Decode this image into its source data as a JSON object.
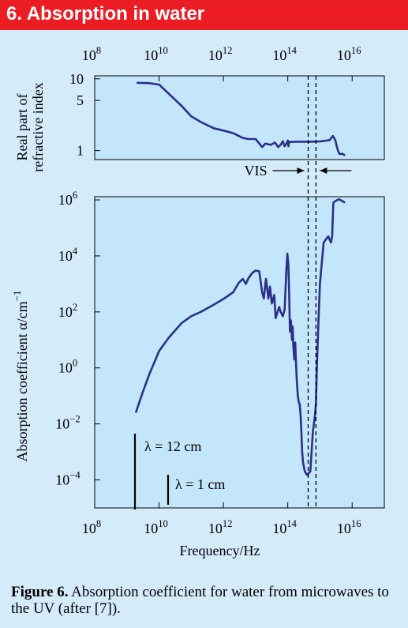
{
  "header": {
    "title": "6. Absorption in water"
  },
  "caption": {
    "label": "Figure 6.",
    "text": " Absorption coefficient for water from microwaves to the UV (after [7])."
  },
  "colors": {
    "banner": "#ec1c24",
    "panel_fill": "#c4e6fa",
    "background": "#d4ebf9",
    "curve": "#2b2f8a"
  },
  "chart_data": [
    {
      "type": "line",
      "ylabel": "Real part of refractive index",
      "x_scale": "log",
      "y_scale": "log",
      "xlim": [
        100000000.0,
        1e+17
      ],
      "ylim": [
        0.75,
        11
      ],
      "x_ticks": [
        {
          "value": 100000000.0,
          "base": "10",
          "exp": "8"
        },
        {
          "value": 10000000000.0,
          "base": "10",
          "exp": "10"
        },
        {
          "value": 1000000000000.0,
          "base": "10",
          "exp": "12"
        },
        {
          "value": 100000000000000.0,
          "base": "10",
          "exp": "14"
        },
        {
          "value": 1e+16,
          "base": "10",
          "exp": "16"
        }
      ],
      "y_ticks": [
        {
          "value": 10,
          "label": "10"
        },
        {
          "value": 5,
          "label": "5"
        },
        {
          "value": 1,
          "label": "1"
        }
      ],
      "annotation": "VIS",
      "vis_band_hz": [
        430000000000000.0,
        750000000000000.0
      ],
      "series": [
        {
          "x": [
            2000000000.0,
            5000000000.0,
            10000000000.0,
            20000000000.0,
            50000000000.0,
            100000000000.0,
            200000000000.0,
            500000000000.0,
            1000000000000.0,
            2000000000000.0,
            4000000000000.0,
            6000000000000.0,
            10000000000000.0,
            16000000000000.0,
            20000000000000.0,
            30000000000000.0,
            40000000000000.0,
            50000000000000.0,
            60000000000000.0,
            70000000000000.0,
            80000000000000.0,
            90000000000000.0,
            100000000000000.0,
            105000000000000.0,
            110000000000000.0,
            200000000000000.0,
            500000000000000.0,
            1000000000000000.0,
            2000000000000000.0,
            2500000000000000.0,
            3000000000000000.0,
            3500000000000000.0,
            4000000000000000.0,
            5000000000000000.0,
            6000000000000000.0
          ],
          "y": [
            8.8,
            8.7,
            8.3,
            6.2,
            4.2,
            3.0,
            2.5,
            2.05,
            1.9,
            1.75,
            1.5,
            1.45,
            1.45,
            1.12,
            1.25,
            1.2,
            1.3,
            1.12,
            1.2,
            1.35,
            1.15,
            1.25,
            1.38,
            1.15,
            1.32,
            1.33,
            1.33,
            1.34,
            1.4,
            1.6,
            1.4,
            1.05,
            0.9,
            0.9,
            0.86
          ]
        }
      ]
    },
    {
      "type": "line",
      "ylabel": "Absorption coefficient α/cm",
      "ylabel_exp": "−1",
      "xlabel": "Frequency/Hz",
      "x_scale": "log",
      "y_scale": "log",
      "xlim": [
        100000000.0,
        1e+17
      ],
      "ylim": [
        1e-05,
        1300000.0
      ],
      "x_ticks": [
        {
          "value": 100000000.0,
          "base": "10",
          "exp": "8"
        },
        {
          "value": 10000000000.0,
          "base": "10",
          "exp": "10"
        },
        {
          "value": 1000000000000.0,
          "base": "10",
          "exp": "12"
        },
        {
          "value": 100000000000000.0,
          "base": "10",
          "exp": "14"
        },
        {
          "value": 1e+16,
          "base": "10",
          "exp": "16"
        }
      ],
      "y_ticks": [
        {
          "value": 1000000.0,
          "base": "10",
          "exp": "6"
        },
        {
          "value": 10000.0,
          "base": "10",
          "exp": "4"
        },
        {
          "value": 100.0,
          "base": "10",
          "exp": "2"
        },
        {
          "value": 1,
          "base": "10",
          "exp": "0"
        },
        {
          "value": 0.01,
          "base": "10",
          "exp": "−2"
        },
        {
          "value": 0.0001,
          "base": "10",
          "exp": "−4"
        }
      ],
      "markers": [
        {
          "label": "λ = 12 cm",
          "frequency_hz": 2500000000.0
        },
        {
          "label": "λ = 1 cm",
          "frequency_hz": 30000000000.0
        }
      ],
      "series": [
        {
          "x": [
            1900000000.0,
            3000000000.0,
            5000000000.0,
            10000000000.0,
            20000000000.0,
            50000000000.0,
            100000000000.0,
            200000000000.0,
            500000000000.0,
            1000000000000.0,
            2000000000000.0,
            3000000000000.0,
            4000000000000.0,
            5000000000000.0,
            6000000000000.0,
            8000000000000.0,
            10000000000000.0,
            13000000000000.0,
            16000000000000.0,
            18000000000000.0,
            21000000000000.0,
            25000000000000.0,
            28000000000000.0,
            32000000000000.0,
            38000000000000.0,
            42000000000000.0,
            48000000000000.0,
            54000000000000.0,
            60000000000000.0,
            70000000000000.0,
            80000000000000.0,
            90000000000000.0,
            97000000000000.0,
            104000000000000.0,
            110000000000000.0,
            117000000000000.0,
            125000000000000.0,
            135000000000000.0,
            142000000000000.0,
            150000000000000.0,
            160000000000000.0,
            170000000000000.0,
            180000000000000.0,
            190000000000000.0,
            205000000000000.0,
            220000000000000.0,
            235000000000000.0,
            250000000000000.0,
            265000000000000.0,
            280000000000000.0,
            300000000000000.0,
            340000000000000.0,
            400000000000000.0,
            500000000000000.0,
            600000000000000.0,
            700000000000000.0,
            750000000000000.0,
            800000000000000.0,
            900000000000000.0,
            1000000000000000.0,
            1300000000000000.0,
            1800000000000000.0,
            2200000000000000.0,
            2400000000000000.0,
            2600000000000000.0,
            3000000000000000.0,
            3500000000000000.0,
            4000000000000000.0,
            5000000000000000.0,
            6000000000000000.0
          ],
          "y": [
            0.025,
            0.12,
            0.6,
            4,
            12,
            40,
            70,
            100,
            180,
            290,
            500,
            1100,
            1500,
            1000,
            1600,
            2500,
            3000,
            2800,
            500,
            300,
            1500,
            300,
            800,
            200,
            400,
            60,
            100,
            150,
            100,
            70,
            120,
            3000,
            12000,
            5000,
            500,
            20,
            50,
            10,
            30,
            5,
            2,
            8,
            1.5,
            0.4,
            0.1,
            0.06,
            0.05,
            0.02,
            0.005,
            0.001,
            0.0004,
            0.0002,
            0.00015,
            0.0002,
            0.005,
            0.02,
            0.05,
            1,
            50,
            1000,
            30000,
            50000,
            30000,
            50000,
            800000,
            900000,
            1000000,
            1050000,
            900000,
            800000
          ]
        }
      ]
    }
  ]
}
